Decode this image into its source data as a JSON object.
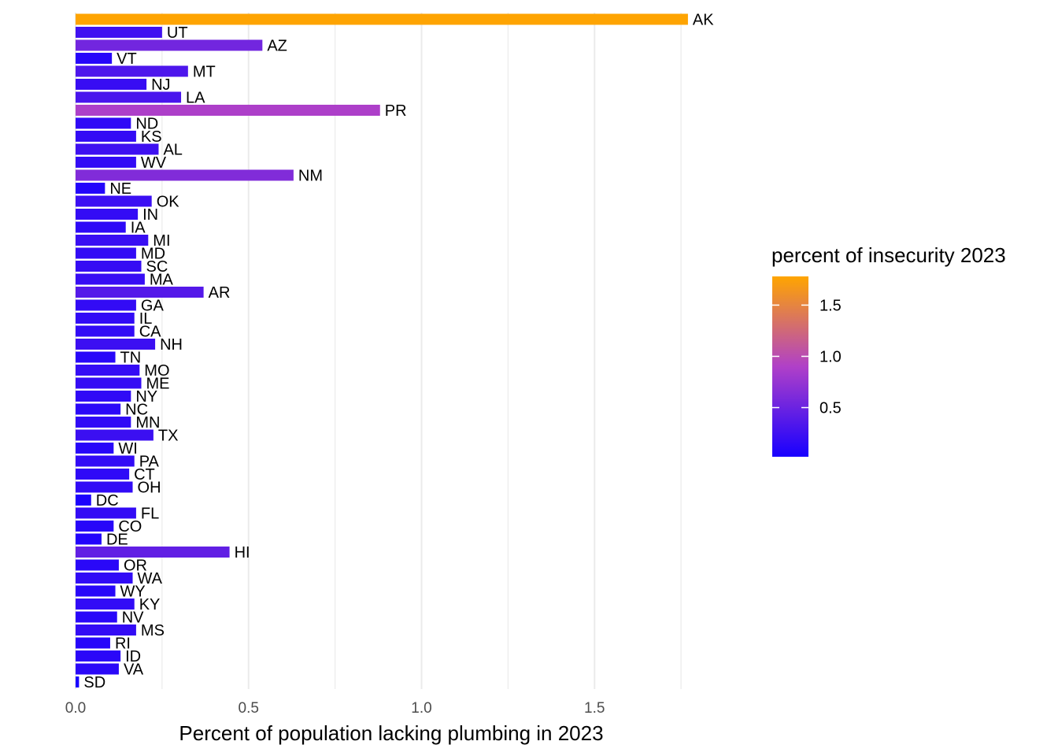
{
  "chart_data": {
    "type": "bar",
    "orientation": "horizontal",
    "xlabel": "Percent of population lacking plumbing in 2023",
    "ylabel": "",
    "xlim": [
      0,
      1.9
    ],
    "x_ticks": [
      0.0,
      0.5,
      1.0,
      1.5
    ],
    "x_tick_labels": [
      "0.0",
      "0.5",
      "1.0",
      "1.5"
    ],
    "grid": true,
    "legend": {
      "title": "percent of insecurity 2023",
      "position": "right",
      "range": [
        0.02,
        1.78
      ],
      "ticks": [
        0.5,
        1.0,
        1.5
      ],
      "tick_labels": [
        "0.5",
        "1.0",
        "1.5"
      ],
      "low_color": "#1800ff",
      "mid_color": "#b040c8",
      "high_color": "#ffa500"
    },
    "categories": [
      "AK",
      "UT",
      "AZ",
      "VT",
      "MT",
      "NJ",
      "LA",
      "PR",
      "ND",
      "KS",
      "AL",
      "WV",
      "NM",
      "NE",
      "OK",
      "IN",
      "IA",
      "MI",
      "MD",
      "SC",
      "MA",
      "AR",
      "GA",
      "IL",
      "CA",
      "NH",
      "TN",
      "MO",
      "ME",
      "NY",
      "NC",
      "MN",
      "TX",
      "WI",
      "PA",
      "CT",
      "OH",
      "DC",
      "FL",
      "CO",
      "DE",
      "HI",
      "OR",
      "WA",
      "WY",
      "KY",
      "NV",
      "MS",
      "RI",
      "ID",
      "VA",
      "SD"
    ],
    "values": [
      1.77,
      0.25,
      0.54,
      0.105,
      0.325,
      0.205,
      0.305,
      0.88,
      0.16,
      0.175,
      0.24,
      0.175,
      0.63,
      0.085,
      0.22,
      0.18,
      0.145,
      0.21,
      0.175,
      0.19,
      0.2,
      0.37,
      0.175,
      0.17,
      0.17,
      0.23,
      0.115,
      0.185,
      0.19,
      0.16,
      0.13,
      0.16,
      0.225,
      0.11,
      0.17,
      0.155,
      0.165,
      0.045,
      0.175,
      0.11,
      0.075,
      0.445,
      0.125,
      0.165,
      0.115,
      0.17,
      0.12,
      0.175,
      0.1,
      0.13,
      0.125,
      0.01
    ]
  }
}
